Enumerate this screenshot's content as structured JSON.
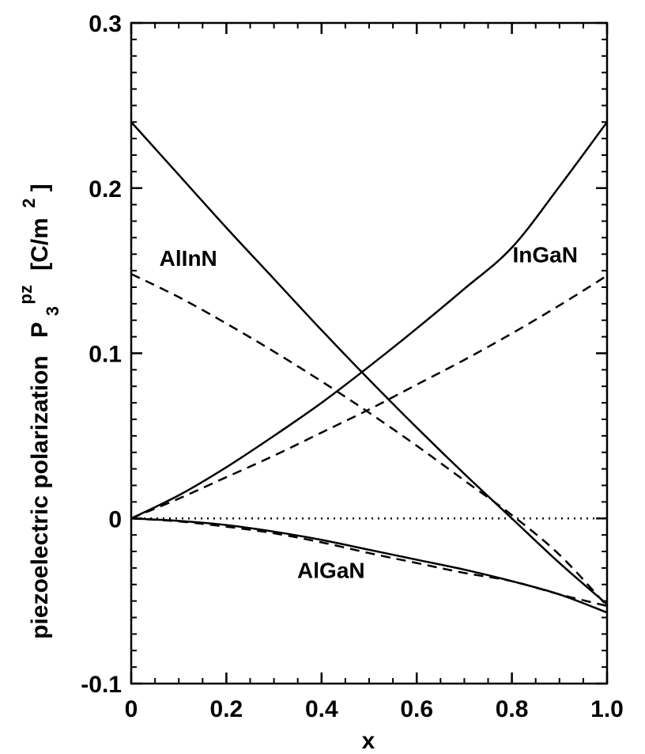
{
  "chart_data": {
    "type": "line",
    "xlabel": "x",
    "ylabel": {
      "prefix": "piezoelectric polarization",
      "symbol": "P",
      "subscript": "3",
      "superscript": "pz",
      "unit_open": "[C/m",
      "unit_power": "2",
      "unit_close": "]"
    },
    "xlim": [
      0,
      1.0
    ],
    "ylim": [
      -0.1,
      0.3
    ],
    "x_ticks": [
      {
        "value": 0,
        "label": "0"
      },
      {
        "value": 0.2,
        "label": "0.2"
      },
      {
        "value": 0.4,
        "label": "0.4"
      },
      {
        "value": 0.6,
        "label": "0.6"
      },
      {
        "value": 0.8,
        "label": "0.8"
      },
      {
        "value": 1.0,
        "label": "1.0"
      }
    ],
    "y_ticks": [
      {
        "value": -0.1,
        "label": "-0.1"
      },
      {
        "value": 0,
        "label": "0"
      },
      {
        "value": 0.1,
        "label": "0.1"
      },
      {
        "value": 0.2,
        "label": "0.2"
      },
      {
        "value": 0.3,
        "label": "0.3"
      }
    ],
    "x_minor_step": 0.05,
    "y_minor_step": 0.01,
    "zero_line": {
      "y": 0,
      "style": "dotted"
    },
    "grid": false,
    "series_labels": [
      {
        "text": "AlInN",
        "at": [
          0.12,
          0.153
        ]
      },
      {
        "text": "InGaN",
        "at": [
          0.87,
          0.155
        ]
      },
      {
        "text": "AlGaN",
        "at": [
          0.42,
          -0.036
        ]
      }
    ],
    "series": [
      {
        "group": "AlInN",
        "style": "solid",
        "x": [
          0,
          0.1,
          0.2,
          0.3,
          0.4,
          0.5,
          0.6,
          0.7,
          0.8,
          0.9,
          1.0
        ],
        "y": [
          0.24,
          0.208,
          0.176,
          0.145,
          0.114,
          0.084,
          0.055,
          0.027,
          0.0,
          -0.027,
          -0.052
        ]
      },
      {
        "group": "AlInN",
        "style": "dashed",
        "x": [
          0,
          0.1,
          0.2,
          0.3,
          0.4,
          0.5,
          0.6,
          0.7,
          0.8,
          0.9,
          1.0
        ],
        "y": [
          0.148,
          0.134,
          0.118,
          0.101,
          0.083,
          0.064,
          0.044,
          0.023,
          0.002,
          -0.022,
          -0.053
        ]
      },
      {
        "group": "InGaN",
        "style": "solid",
        "x": [
          0,
          0.1,
          0.2,
          0.3,
          0.4,
          0.5,
          0.6,
          0.7,
          0.8,
          0.9,
          1.0
        ],
        "y": [
          0.0,
          0.014,
          0.031,
          0.05,
          0.07,
          0.092,
          0.115,
          0.139,
          0.164,
          0.201,
          0.24
        ]
      },
      {
        "group": "InGaN",
        "style": "dashed",
        "x": [
          0,
          0.1,
          0.2,
          0.3,
          0.4,
          0.5,
          0.6,
          0.7,
          0.8,
          0.9,
          1.0
        ],
        "y": [
          0.0,
          0.012,
          0.025,
          0.038,
          0.052,
          0.066,
          0.081,
          0.096,
          0.112,
          0.129,
          0.147
        ]
      },
      {
        "group": "AlGaN",
        "style": "solid",
        "x": [
          0,
          0.1,
          0.2,
          0.3,
          0.4,
          0.5,
          0.6,
          0.7,
          0.8,
          0.9,
          1.0
        ],
        "y": [
          0.0,
          -0.0015,
          -0.004,
          -0.008,
          -0.013,
          -0.019,
          -0.025,
          -0.031,
          -0.038,
          -0.046,
          -0.057
        ]
      },
      {
        "group": "AlGaN",
        "style": "dashed",
        "x": [
          0,
          0.1,
          0.2,
          0.3,
          0.4,
          0.5,
          0.6,
          0.7,
          0.8,
          0.9,
          1.0
        ],
        "y": [
          0.0,
          -0.0018,
          -0.005,
          -0.009,
          -0.0145,
          -0.021,
          -0.027,
          -0.033,
          -0.038,
          -0.046,
          -0.053
        ]
      }
    ]
  }
}
